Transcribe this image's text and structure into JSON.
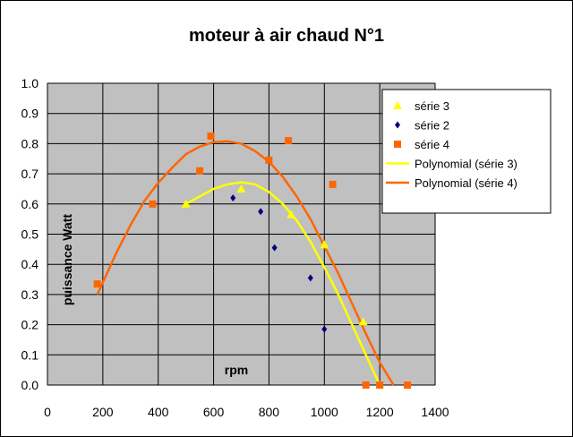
{
  "chart_data": {
    "type": "scatter",
    "title": "moteur à air chaud N°1",
    "xlabel": "rpm",
    "ylabel": "puissance Watt",
    "xlim": [
      0,
      1400
    ],
    "ylim": [
      0,
      1.0
    ],
    "x_ticks": [
      "0",
      "200",
      "400",
      "600",
      "800",
      "1000",
      "1200",
      "1400"
    ],
    "y_ticks": [
      "0.0",
      "0.1",
      "0.2",
      "0.3",
      "0.4",
      "0.5",
      "0.6",
      "0.7",
      "0.8",
      "0.9",
      "1.0"
    ],
    "grid": true,
    "plot_background": "#c0c0c0",
    "legend_position": "right",
    "series": [
      {
        "name": "série 3",
        "marker": "triangle",
        "color": "#ffff00",
        "points": [
          [
            500,
            0.6
          ],
          [
            700,
            0.65
          ],
          [
            880,
            0.565
          ],
          [
            1000,
            0.465
          ],
          [
            1140,
            0.21
          ],
          [
            1200,
            0.0
          ]
        ]
      },
      {
        "name": "série 2",
        "marker": "diamond",
        "color": "#000080",
        "points": [
          [
            670,
            0.62
          ],
          [
            770,
            0.575
          ],
          [
            820,
            0.455
          ],
          [
            950,
            0.355
          ],
          [
            1000,
            0.185
          ]
        ]
      },
      {
        "name": "série 4",
        "marker": "square",
        "color": "#ff6600",
        "points": [
          [
            180,
            0.335
          ],
          [
            380,
            0.6
          ],
          [
            550,
            0.71
          ],
          [
            590,
            0.825
          ],
          [
            800,
            0.745
          ],
          [
            870,
            0.81
          ],
          [
            1030,
            0.665
          ],
          [
            1150,
            0.0
          ],
          [
            1200,
            0.0
          ],
          [
            1300,
            0.0
          ]
        ]
      },
      {
        "name": "Polynomial (série 3)",
        "line": true,
        "color": "#ffff00",
        "curve": [
          [
            500,
            0.6
          ],
          [
            550,
            0.625
          ],
          [
            600,
            0.65
          ],
          [
            650,
            0.665
          ],
          [
            700,
            0.672
          ],
          [
            750,
            0.665
          ],
          [
            800,
            0.64
          ],
          [
            850,
            0.6
          ],
          [
            900,
            0.545
          ],
          [
            950,
            0.475
          ],
          [
            1000,
            0.39
          ],
          [
            1050,
            0.3
          ],
          [
            1100,
            0.2
          ],
          [
            1150,
            0.1
          ],
          [
            1200,
            0.0
          ]
        ]
      },
      {
        "name": "Polynomial (série 4)",
        "line": true,
        "color": "#ff6600",
        "curve": [
          [
            180,
            0.3
          ],
          [
            250,
            0.44
          ],
          [
            300,
            0.53
          ],
          [
            350,
            0.61
          ],
          [
            400,
            0.67
          ],
          [
            450,
            0.72
          ],
          [
            500,
            0.765
          ],
          [
            550,
            0.79
          ],
          [
            600,
            0.805
          ],
          [
            650,
            0.808
          ],
          [
            700,
            0.8
          ],
          [
            750,
            0.775
          ],
          [
            800,
            0.74
          ],
          [
            850,
            0.69
          ],
          [
            900,
            0.625
          ],
          [
            950,
            0.55
          ],
          [
            1000,
            0.46
          ],
          [
            1050,
            0.37
          ],
          [
            1100,
            0.27
          ],
          [
            1150,
            0.17
          ],
          [
            1200,
            0.075
          ],
          [
            1250,
            0.0
          ]
        ]
      }
    ]
  }
}
